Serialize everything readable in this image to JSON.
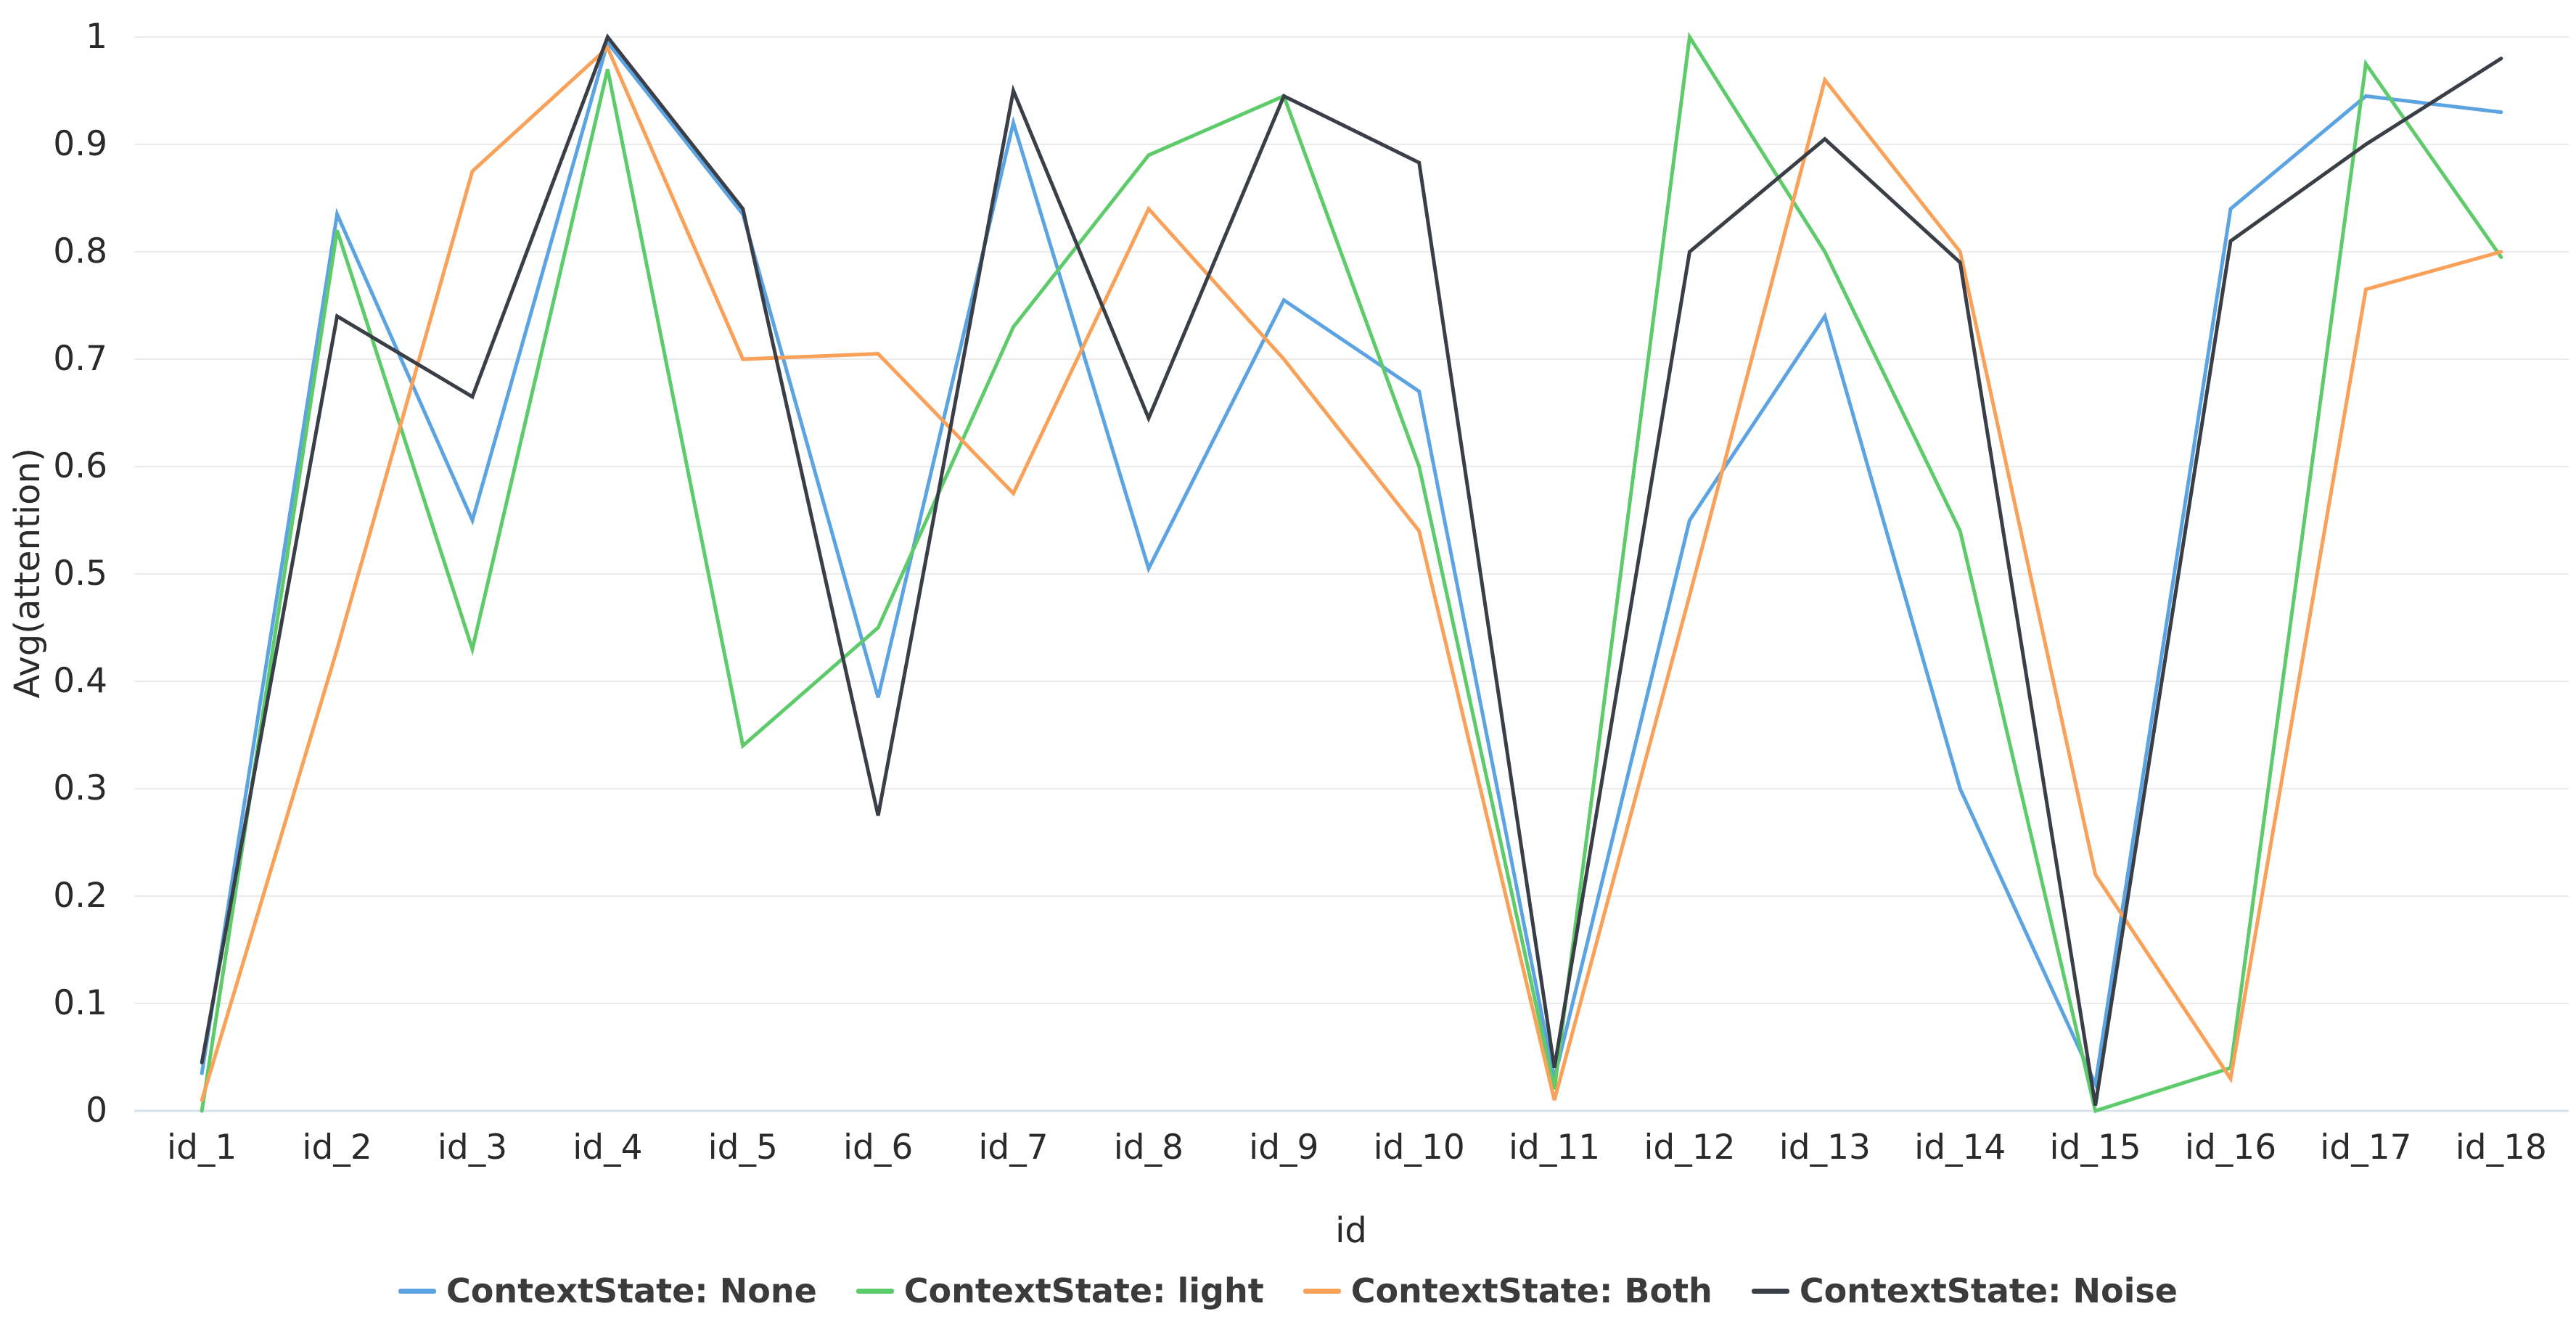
{
  "chart_data": {
    "type": "line",
    "title": "",
    "xlabel": "id",
    "ylabel": "Avg(attention)",
    "ylim": [
      0,
      1
    ],
    "grid": true,
    "legend_position": "bottom",
    "categories": [
      "id_1",
      "id_2",
      "id_3",
      "id_4",
      "id_5",
      "id_6",
      "id_7",
      "id_8",
      "id_9",
      "id_10",
      "id_11",
      "id_12",
      "id_13",
      "id_14",
      "id_15",
      "id_16",
      "id_17",
      "id_18"
    ],
    "y_tick_labels": [
      "0",
      "0.1",
      "0.2",
      "0.3",
      "0.4",
      "0.5",
      "0.6",
      "0.7",
      "0.8",
      "0.9",
      "1"
    ],
    "series": [
      {
        "name": "ContextState: None",
        "color": "#5CA3E2",
        "values": [
          0.035,
          0.835,
          0.55,
          0.995,
          0.835,
          0.385,
          0.92,
          0.505,
          0.755,
          0.67,
          0.03,
          0.55,
          0.74,
          0.3,
          0.025,
          0.84,
          0.945,
          0.93
        ]
      },
      {
        "name": "ContextState: light",
        "color": "#5ECB6B",
        "values": [
          0.0,
          0.82,
          0.43,
          0.97,
          0.34,
          0.45,
          0.73,
          0.89,
          0.945,
          0.6,
          0.02,
          1.0,
          0.8,
          0.54,
          0.0,
          0.04,
          0.975,
          0.795
        ]
      },
      {
        "name": "ContextState: Both",
        "color": "#F9A159",
        "values": [
          0.01,
          0.43,
          0.875,
          0.99,
          0.7,
          0.705,
          0.575,
          0.84,
          0.7,
          0.54,
          0.01,
          0.48,
          0.96,
          0.8,
          0.22,
          0.03,
          0.765,
          0.8
        ]
      },
      {
        "name": "ContextState: Noise",
        "color": "#3A3F47",
        "values": [
          0.045,
          0.74,
          0.665,
          1.0,
          0.84,
          0.275,
          0.95,
          0.645,
          0.945,
          0.883,
          0.04,
          0.8,
          0.905,
          0.79,
          0.005,
          0.81,
          0.9,
          0.98
        ]
      }
    ],
    "style": {
      "grid_color": "#EBEBEB",
      "axis_line_color": "#D7E2EB",
      "text_color": "#2A2A2A",
      "line_width": 5
    }
  }
}
